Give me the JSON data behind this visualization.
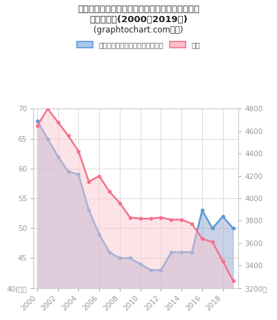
{
  "title_line1": "阿武郡阿武町の一般行政部門職員数（市区町村）",
  "title_line2": "推移グラフ(2000〜2019年)",
  "title_line3": "(graphtochart.com作成)",
  "legend_blue": "一般行政部門職員数（市区町村）",
  "legend_pink": "人口",
  "years": [
    2000,
    2001,
    2002,
    2003,
    2004,
    2005,
    2006,
    2007,
    2008,
    2009,
    2010,
    2011,
    2012,
    2013,
    2014,
    2015,
    2016,
    2017,
    2018,
    2019
  ],
  "blue_values": [
    68,
    65,
    62,
    59.5,
    59,
    53,
    49,
    46,
    45,
    45,
    44,
    43,
    43,
    46,
    46,
    46,
    53,
    50,
    52,
    50
  ],
  "blue_color": "#5b9bd5",
  "pink_color": "#f4728b",
  "blue_fill_color": "#9dadd4",
  "pink_fill_color": "#f9c8d2",
  "blue_fill_alpha": 0.55,
  "pink_fill_alpha": 0.5,
  "ylim_left": [
    40,
    70
  ],
  "ylim_right": [
    3200,
    4800
  ],
  "yticks_left": [
    40,
    45,
    50,
    55,
    60,
    65,
    70
  ],
  "yticks_right": [
    3200,
    3400,
    3600,
    3800,
    4000,
    4200,
    4400,
    4600,
    4800
  ],
  "background_color": "#ffffff",
  "grid_color": "#cccccc",
  "tick_color": "#999999",
  "right_population": [
    4650,
    4800,
    4680,
    4560,
    4420,
    4150,
    4200,
    4060,
    3960,
    3830,
    3820,
    3820,
    3830,
    3810,
    3810,
    3775,
    3640,
    3610,
    3440,
    3265
  ]
}
